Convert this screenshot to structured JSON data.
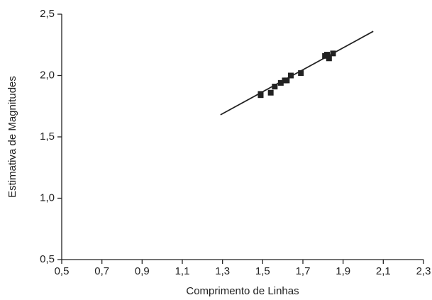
{
  "chart_data": {
    "type": "scatter",
    "x_label": "Comprimento de Linhas",
    "y_label": "Estimativa de Magnitudes",
    "x": [
      1.49,
      1.49,
      1.54,
      1.56,
      1.59,
      1.61,
      1.62,
      1.64,
      1.69,
      1.81,
      1.82,
      1.83,
      1.85
    ],
    "values": [
      1.85,
      1.84,
      1.86,
      1.91,
      1.94,
      1.96,
      1.96,
      2.0,
      2.02,
      2.16,
      2.17,
      2.14,
      2.18
    ],
    "color": "#222222",
    "fit_line": {
      "x": [
        1.29,
        2.05
      ],
      "values": [
        1.68,
        2.36
      ],
      "color": "#222222"
    },
    "xlim": [
      0.5,
      2.3
    ],
    "ylim": [
      0.5,
      2.5
    ],
    "xticks": [
      {
        "value": 0.5,
        "label": "0,5"
      },
      {
        "value": 0.7,
        "label": "0,7"
      },
      {
        "value": 0.9,
        "label": "0,9"
      },
      {
        "value": 1.1,
        "label": "1,1"
      },
      {
        "value": 1.3,
        "label": "1,3"
      },
      {
        "value": 1.5,
        "label": "1,5"
      },
      {
        "value": 1.7,
        "label": "1,7"
      },
      {
        "value": 1.9,
        "label": "1,9"
      },
      {
        "value": 2.1,
        "label": "2,1"
      },
      {
        "value": 2.3,
        "label": "2,3"
      }
    ],
    "yticks": [
      {
        "value": 0.5,
        "label": "0,5"
      },
      {
        "value": 1.0,
        "label": "1,0"
      },
      {
        "value": 1.5,
        "label": "1,5"
      },
      {
        "value": 2.0,
        "label": "2,0"
      },
      {
        "value": 2.5,
        "label": "2,5"
      }
    ],
    "grid": false
  }
}
